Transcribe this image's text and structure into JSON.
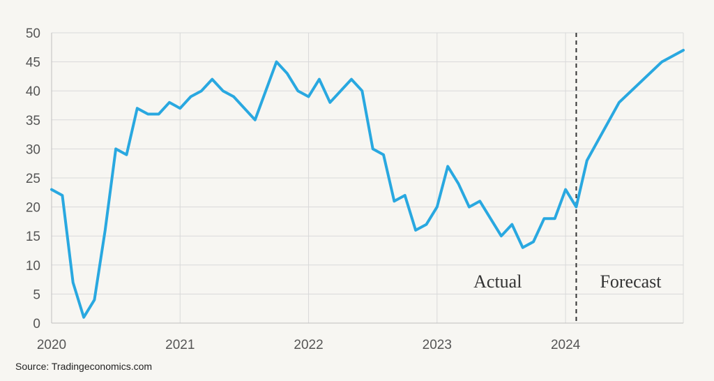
{
  "chart_data": {
    "type": "line",
    "title": "",
    "xlabel": "",
    "ylabel": "",
    "ylim": [
      0,
      50
    ],
    "xlim": [
      "2020-01",
      "2024-12"
    ],
    "y_ticks": [
      0,
      5,
      10,
      15,
      20,
      25,
      30,
      35,
      40,
      45,
      50
    ],
    "x_ticks": [
      "2020",
      "2021",
      "2022",
      "2023",
      "2024"
    ],
    "grid": true,
    "forecast_start": "2024-02",
    "annotations": {
      "actual": "Actual",
      "forecast": "Forecast"
    },
    "series": [
      {
        "color": "#29a8e0",
        "points": [
          [
            "2020-01",
            23
          ],
          [
            "2020-02",
            22
          ],
          [
            "2020-03",
            7
          ],
          [
            "2020-04",
            1
          ],
          [
            "2020-05",
            4
          ],
          [
            "2020-06",
            16
          ],
          [
            "2020-07",
            30
          ],
          [
            "2020-08",
            29
          ],
          [
            "2020-09",
            37
          ],
          [
            "2020-10",
            36
          ],
          [
            "2020-11",
            36
          ],
          [
            "2020-12",
            38
          ],
          [
            "2021-01",
            37
          ],
          [
            "2021-02",
            39
          ],
          [
            "2021-03",
            40
          ],
          [
            "2021-04",
            42
          ],
          [
            "2021-05",
            40
          ],
          [
            "2021-06",
            39
          ],
          [
            "2021-08",
            35
          ],
          [
            "2021-10",
            45
          ],
          [
            "2021-11",
            43
          ],
          [
            "2021-12",
            40
          ],
          [
            "2022-01",
            39
          ],
          [
            "2022-02",
            42
          ],
          [
            "2022-03",
            38
          ],
          [
            "2022-05",
            42
          ],
          [
            "2022-06",
            40
          ],
          [
            "2022-07",
            30
          ],
          [
            "2022-08",
            29
          ],
          [
            "2022-09",
            21
          ],
          [
            "2022-10",
            22
          ],
          [
            "2022-11",
            16
          ],
          [
            "2022-12",
            17
          ],
          [
            "2023-01",
            20
          ],
          [
            "2023-02",
            27
          ],
          [
            "2023-03",
            24
          ],
          [
            "2023-04",
            20
          ],
          [
            "2023-05",
            21
          ],
          [
            "2023-07",
            15
          ],
          [
            "2023-08",
            17
          ],
          [
            "2023-09",
            13
          ],
          [
            "2023-10",
            14
          ],
          [
            "2023-11",
            18
          ],
          [
            "2023-12",
            18
          ],
          [
            "2024-01",
            23
          ],
          [
            "2024-02",
            20
          ],
          [
            "2024-03",
            28
          ],
          [
            "2024-06",
            38
          ],
          [
            "2024-10",
            45
          ],
          [
            "2024-12",
            47
          ]
        ]
      }
    ]
  },
  "source": "Source: Tradingeconomics.com"
}
